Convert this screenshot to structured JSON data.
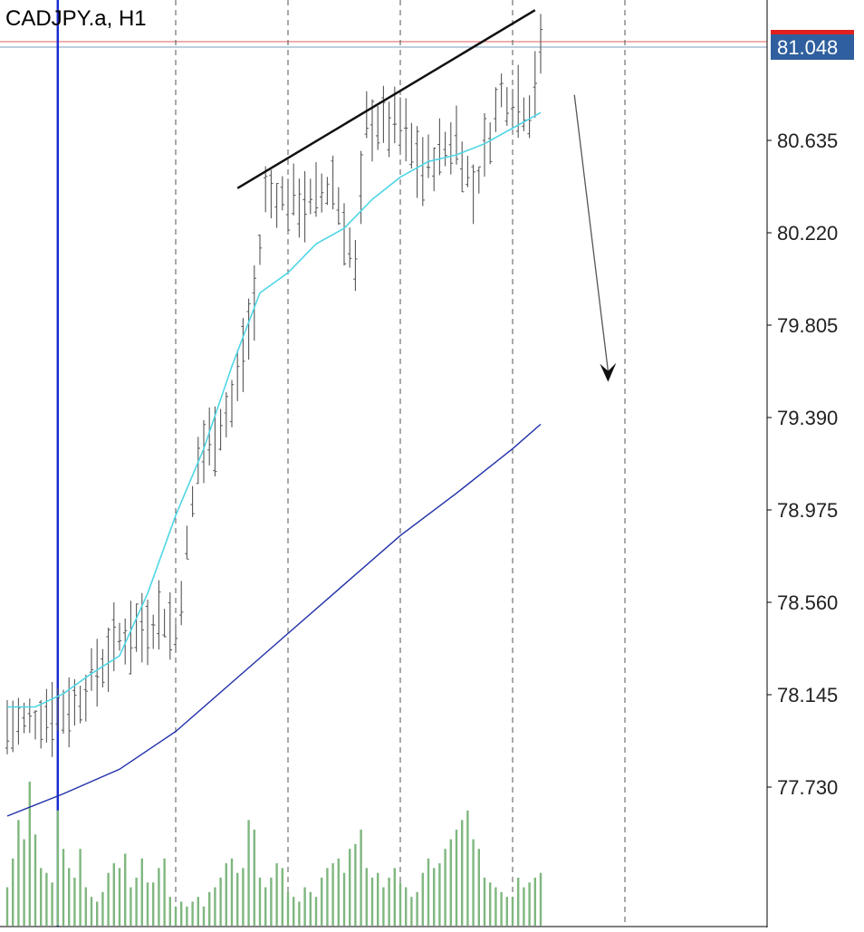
{
  "chart_data": {
    "type": "ohlc",
    "title": "CADJPY.a, H1",
    "symbol": "CADJPY.a",
    "timeframe": "H1",
    "price_axis": {
      "ticks": [
        "81.048",
        "80.635",
        "80.220",
        "79.805",
        "79.390",
        "78.975",
        "78.560",
        "78.145",
        "77.730"
      ],
      "range": [
        77.2,
        81.1
      ]
    },
    "current_price": {
      "label": "81.048",
      "value": 81.048
    },
    "bars": {
      "count": 96,
      "segments": [
        {
          "to": 0,
          "mid": 78.0
        },
        {
          "to": 12,
          "mid": 78.1
        },
        {
          "to": 20,
          "mid": 78.4
        },
        {
          "to": 28,
          "mid": 78.5
        },
        {
          "to": 30,
          "mid": 78.4
        },
        {
          "to": 34,
          "mid": 79.2
        },
        {
          "to": 40,
          "mid": 79.45
        },
        {
          "to": 44,
          "mid": 79.9
        },
        {
          "to": 46,
          "mid": 80.4
        },
        {
          "to": 54,
          "mid": 80.35
        },
        {
          "to": 58,
          "mid": 80.45
        },
        {
          "to": 62,
          "mid": 80.05
        },
        {
          "to": 64,
          "mid": 80.72
        },
        {
          "to": 70,
          "mid": 80.7
        },
        {
          "to": 74,
          "mid": 80.5
        },
        {
          "to": 80,
          "mid": 80.65
        },
        {
          "to": 83,
          "mid": 80.4
        },
        {
          "to": 88,
          "mid": 80.85
        },
        {
          "to": 93,
          "mid": 80.78
        },
        {
          "to": 95,
          "mid": 81.03
        }
      ]
    },
    "ma_fast": {
      "color": "#4fd6e6",
      "x": [
        0,
        5,
        10,
        15,
        20,
        25,
        30,
        35,
        40,
        45,
        50,
        55,
        60,
        65,
        70,
        75,
        80,
        85,
        90,
        95
      ],
      "values": [
        78.09,
        78.09,
        78.15,
        78.24,
        78.32,
        78.6,
        78.95,
        79.25,
        79.62,
        79.95,
        80.04,
        80.17,
        80.24,
        80.37,
        80.47,
        80.54,
        80.57,
        80.62,
        80.69,
        80.76
      ]
    },
    "ma_slow": {
      "color": "#1f2fa8",
      "x": [
        0,
        10,
        20,
        30,
        40,
        50,
        60,
        70,
        80,
        90,
        95
      ],
      "values": [
        77.6,
        77.7,
        77.81,
        77.98,
        78.2,
        78.42,
        78.64,
        78.86,
        79.05,
        79.25,
        79.36
      ]
    },
    "resistance_line": {
      "from": {
        "bar": 41,
        "price": 80.42
      },
      "to": {
        "bar": 94,
        "price": 81.22
      }
    },
    "projection_arrow": {
      "from": {
        "bar": 101,
        "price": 80.84
      },
      "to": {
        "bar": 107,
        "price": 79.55
      }
    },
    "vertical_marker": {
      "bar": 9,
      "color": "#1a2bd0"
    },
    "session_separators": {
      "bars": [
        30,
        50,
        70,
        90,
        110
      ]
    },
    "volume": {
      "color": "#7fb77f",
      "values": [
        8,
        14,
        22,
        18,
        30,
        19,
        12,
        11,
        9,
        24,
        16,
        12,
        10,
        16,
        8,
        6,
        5,
        7,
        11,
        13,
        12,
        15,
        8,
        10,
        14,
        9,
        9,
        12,
        14,
        6,
        4,
        5,
        4,
        5,
        6,
        4,
        7,
        8,
        10,
        13,
        14,
        11,
        12,
        22,
        20,
        10,
        8,
        10,
        13,
        12,
        7,
        6,
        5,
        8,
        7,
        6,
        10,
        12,
        13,
        14,
        11,
        16,
        17,
        20,
        12,
        10,
        11,
        8,
        10,
        12,
        9,
        8,
        6,
        7,
        11,
        14,
        12,
        13,
        16,
        18,
        20,
        22,
        24,
        18,
        16,
        10,
        9,
        8,
        7,
        6,
        6,
        10,
        8,
        9,
        10,
        11
      ]
    }
  }
}
